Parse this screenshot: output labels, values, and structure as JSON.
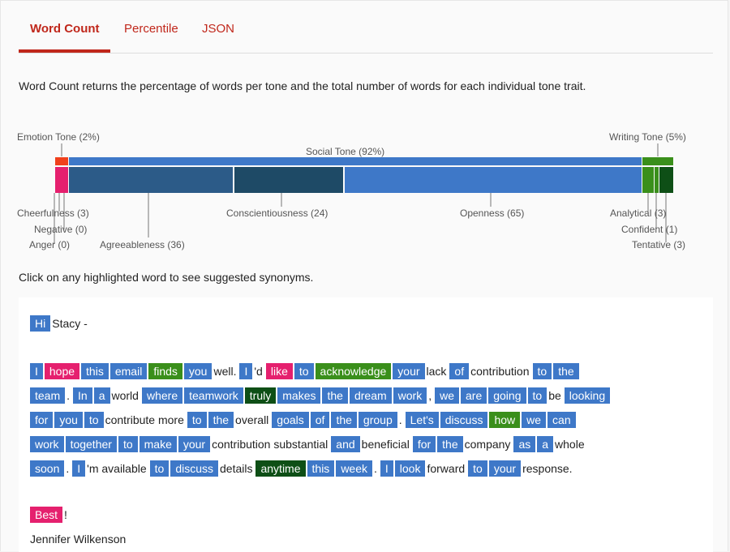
{
  "tabs": [
    {
      "label": "Word Count"
    },
    {
      "label": "Percentile"
    },
    {
      "label": "JSON"
    }
  ],
  "description": "Word Count returns the percentage of words per tone and the total number of words for each individual tone trait.",
  "chart": {
    "labels": {
      "emotion": "Emotion Tone (2%)",
      "social": "Social Tone (92%)",
      "writing": "Writing Tone (5%)",
      "cheerfulness": "Cheerfulness (3)",
      "negative": "Negative (0)",
      "anger": "Anger (0)",
      "agreeableness": "Agreeableness (36)",
      "conscientiousness": "Conscientiousness (24)",
      "openness": "Openness (65)",
      "analytical": "Analytical (3)",
      "confident": "Confident (1)",
      "tentative": "Tentative (3)"
    },
    "colors": {
      "emotion": "#f0401c",
      "cheerful": "#e5206e",
      "social": "#3e78c8",
      "agree": "#2c5b88",
      "consc": "#1e4a66",
      "writing": "#3a8f1b",
      "tentative": "#0e4f16"
    }
  },
  "click_note": "Click on any highlighted word to see suggested synonyms.",
  "email": {
    "greeting": [
      {
        "t": "Hi",
        "c": "soc"
      },
      {
        "t": "Stacy -",
        "c": ""
      }
    ],
    "lines": [
      [
        {
          "t": "I",
          "c": "soc"
        },
        {
          "t": "hope",
          "c": "emo"
        },
        {
          "t": "this",
          "c": "soc"
        },
        {
          "t": "email",
          "c": "soc"
        },
        {
          "t": "finds",
          "c": "wri"
        },
        {
          "t": "you",
          "c": "soc"
        },
        {
          "t": "well.",
          "c": ""
        },
        {
          "t": "I",
          "c": "soc"
        },
        {
          "t": "'d",
          "c": ""
        },
        {
          "t": "like",
          "c": "emo"
        },
        {
          "t": "to",
          "c": "soc"
        },
        {
          "t": "acknowledge",
          "c": "wri"
        },
        {
          "t": "your",
          "c": "soc"
        },
        {
          "t": "lack",
          "c": ""
        },
        {
          "t": "of",
          "c": "soc"
        },
        {
          "t": "contribution",
          "c": ""
        },
        {
          "t": "to",
          "c": "soc"
        },
        {
          "t": "the",
          "c": "soc"
        }
      ],
      [
        {
          "t": "team",
          "c": "soc"
        },
        {
          "t": ".",
          "c": ""
        },
        {
          "t": "In",
          "c": "soc"
        },
        {
          "t": "a",
          "c": "soc"
        },
        {
          "t": "world",
          "c": ""
        },
        {
          "t": "where",
          "c": "soc"
        },
        {
          "t": "teamwork",
          "c": "soc"
        },
        {
          "t": "truly",
          "c": "ten"
        },
        {
          "t": "makes",
          "c": "soc"
        },
        {
          "t": "the",
          "c": "soc"
        },
        {
          "t": "dream",
          "c": "soc"
        },
        {
          "t": "work",
          "c": "soc"
        },
        {
          "t": ",",
          "c": ""
        },
        {
          "t": "we",
          "c": "soc"
        },
        {
          "t": "are",
          "c": "soc"
        },
        {
          "t": "going",
          "c": "soc"
        },
        {
          "t": "to",
          "c": "soc"
        },
        {
          "t": "be",
          "c": ""
        },
        {
          "t": "looking",
          "c": "soc"
        }
      ],
      [
        {
          "t": "for",
          "c": "soc"
        },
        {
          "t": "you",
          "c": "soc"
        },
        {
          "t": "to",
          "c": "soc"
        },
        {
          "t": "contribute more",
          "c": ""
        },
        {
          "t": "to",
          "c": "soc"
        },
        {
          "t": "the",
          "c": "soc"
        },
        {
          "t": "overall",
          "c": ""
        },
        {
          "t": "goals",
          "c": "soc"
        },
        {
          "t": "of",
          "c": "soc"
        },
        {
          "t": "the",
          "c": "soc"
        },
        {
          "t": "group",
          "c": "soc"
        },
        {
          "t": ".",
          "c": ""
        },
        {
          "t": "Let's",
          "c": "soc"
        },
        {
          "t": "discuss",
          "c": "soc"
        },
        {
          "t": "how",
          "c": "wri"
        },
        {
          "t": "we",
          "c": "soc"
        },
        {
          "t": "can",
          "c": "soc"
        }
      ],
      [
        {
          "t": "work",
          "c": "soc"
        },
        {
          "t": "together",
          "c": "soc"
        },
        {
          "t": "to",
          "c": "soc"
        },
        {
          "t": "make",
          "c": "soc"
        },
        {
          "t": "your",
          "c": "soc"
        },
        {
          "t": "contribution substantial",
          "c": ""
        },
        {
          "t": "and",
          "c": "soc"
        },
        {
          "t": "beneficial",
          "c": ""
        },
        {
          "t": "for",
          "c": "soc"
        },
        {
          "t": "the",
          "c": "soc"
        },
        {
          "t": "company",
          "c": ""
        },
        {
          "t": "as",
          "c": "soc"
        },
        {
          "t": "a",
          "c": "soc"
        },
        {
          "t": "whole",
          "c": ""
        }
      ],
      [
        {
          "t": "soon",
          "c": "soc"
        },
        {
          "t": ".",
          "c": ""
        },
        {
          "t": "I",
          "c": "soc"
        },
        {
          "t": "'m available",
          "c": ""
        },
        {
          "t": "to",
          "c": "soc"
        },
        {
          "t": "discuss",
          "c": "soc"
        },
        {
          "t": "details",
          "c": ""
        },
        {
          "t": "anytime",
          "c": "ten"
        },
        {
          "t": "this",
          "c": "soc"
        },
        {
          "t": "week",
          "c": "soc"
        },
        {
          "t": ".",
          "c": ""
        },
        {
          "t": "I",
          "c": "soc"
        },
        {
          "t": "look",
          "c": "soc"
        },
        {
          "t": "forward",
          "c": ""
        },
        {
          "t": "to",
          "c": "soc"
        },
        {
          "t": "your",
          "c": "soc"
        },
        {
          "t": "response.",
          "c": ""
        }
      ]
    ],
    "closing": [
      {
        "t": "Best",
        "c": "emo"
      },
      {
        "t": "!",
        "c": ""
      }
    ],
    "signature": "Jennifer Wilkenson"
  }
}
